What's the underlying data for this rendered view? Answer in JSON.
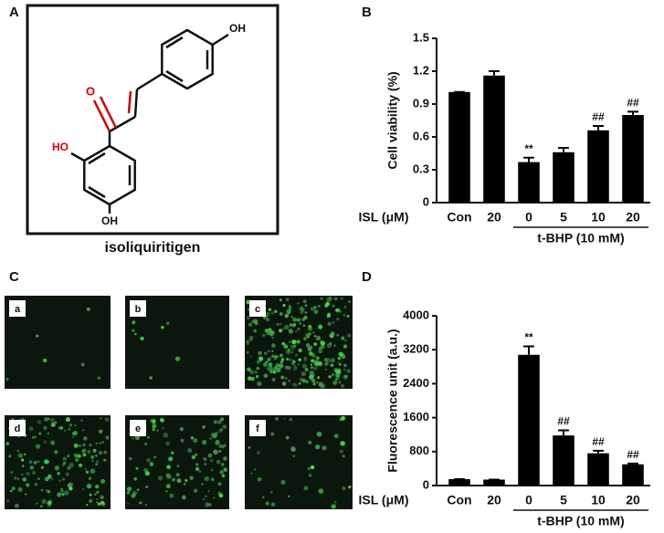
{
  "panel_labels": [
    "A",
    "B",
    "C",
    "D"
  ],
  "structure": {
    "name": "isoliquiritigen",
    "atoms": [
      "O",
      "HO",
      "OH",
      "OH"
    ]
  },
  "images": [
    "a",
    "b",
    "c",
    "d",
    "e",
    "f"
  ],
  "chart_data": [
    {
      "type": "bar",
      "ylabel": "Cell viability (%)",
      "x_label": "ISL (μM)",
      "group_label": "t-BHP (10 mM)",
      "categories": [
        "Con",
        "20",
        "0",
        "5",
        "10",
        "20"
      ],
      "values": [
        1.01,
        1.16,
        0.37,
        0.46,
        0.66,
        0.8
      ],
      "errors": [
        0.0,
        0.04,
        0.04,
        0.04,
        0.04,
        0.03
      ],
      "annotations": [
        null,
        null,
        "**",
        null,
        "##",
        "##"
      ],
      "color": "#000000",
      "ylim": [
        0,
        1.5
      ],
      "yticks": [
        0,
        0.3,
        0.6,
        0.9,
        1.2,
        1.5
      ]
    },
    {
      "type": "bar",
      "ylabel": "Fluorescence unit (a.u.)",
      "x_label": "ISL (μM)",
      "group_label": "t-BHP (10 mM)",
      "categories": [
        "Con",
        "20",
        "0",
        "5",
        "10",
        "20"
      ],
      "values": [
        150,
        140,
        3080,
        1180,
        760,
        500
      ],
      "errors": [
        0,
        0,
        200,
        120,
        60,
        20
      ],
      "annotations": [
        null,
        null,
        "**",
        "##",
        "##",
        "##"
      ],
      "color": "#000000",
      "ylim": [
        0,
        4000
      ],
      "yticks": [
        0,
        800,
        1600,
        2400,
        3200,
        4000
      ]
    }
  ]
}
